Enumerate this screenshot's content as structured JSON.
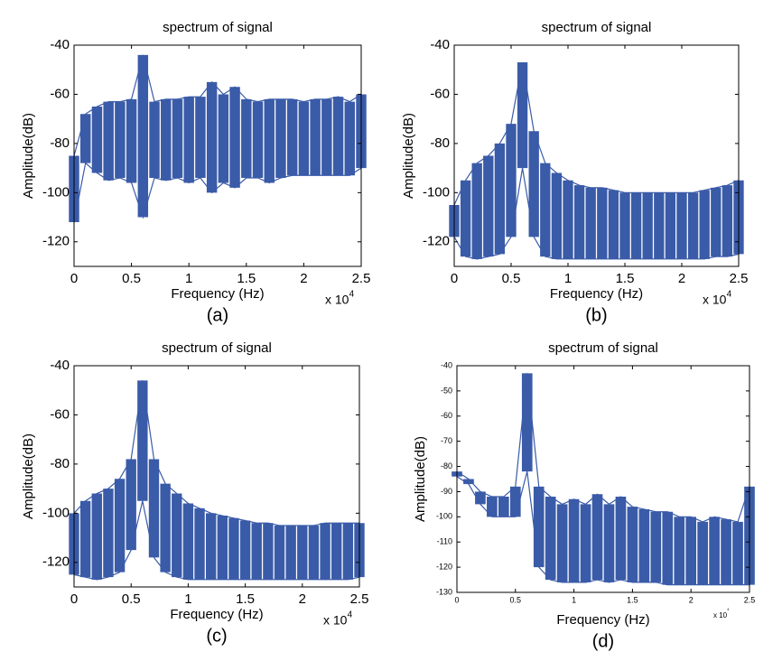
{
  "chart_data": [
    {
      "type": "area",
      "title": "spectrum of signal",
      "xlabel": "Frequency (Hz)",
      "ylabel": "Amplitude(dB)",
      "caption": "(a)",
      "x_scale_label": "x 10",
      "x_scale_exponent": "4",
      "x": [
        0,
        1000,
        2000,
        3000,
        4000,
        5000,
        6000,
        7000,
        8000,
        9000,
        10000,
        11000,
        12000,
        13000,
        14000,
        15000,
        16000,
        17000,
        18000,
        19000,
        20000,
        21000,
        22000,
        23000,
        24000,
        25000
      ],
      "series": [
        {
          "color": "#3a5ba8",
          "values": [
            -85,
            -68,
            -65,
            -63,
            -63,
            -62,
            -44,
            -63,
            -62,
            -62,
            -61,
            -61,
            -55,
            -60,
            -57,
            -62,
            -63,
            -62,
            -62,
            -62,
            -63,
            -62,
            -62,
            -61,
            -63,
            -60
          ]
        },
        {
          "color": "#3a5ba8",
          "values": [
            -112,
            -88,
            -92,
            -95,
            -94,
            -96,
            -110,
            -94,
            -95,
            -94,
            -96,
            -94,
            -100,
            -96,
            -98,
            -94,
            -94,
            -96,
            -94,
            -93,
            -93,
            -93,
            -93,
            -93,
            -93,
            -90
          ]
        }
      ],
      "xlim": [
        0,
        25000
      ],
      "ylim": [
        -130,
        -40
      ],
      "xticks": [
        0,
        {
          "value": 5000,
          "label": "0.5"
        },
        {
          "value": 10000,
          "label": "1"
        },
        {
          "value": 15000,
          "label": "1.5"
        },
        {
          "value": 20000,
          "label": "2"
        },
        {
          "value": 25000,
          "label": "2.5"
        }
      ],
      "yticks": [
        -120,
        -100,
        -80,
        -60,
        -40
      ]
    },
    {
      "type": "area",
      "title": "spectrum of signal",
      "xlabel": "Frequency (Hz)",
      "ylabel": "Amplitude(dB)",
      "caption": "(b)",
      "x_scale_label": "x 10",
      "x_scale_exponent": "4",
      "x": [
        0,
        1000,
        2000,
        3000,
        4000,
        5000,
        6000,
        7000,
        8000,
        9000,
        10000,
        11000,
        12000,
        13000,
        14000,
        15000,
        16000,
        17000,
        18000,
        19000,
        20000,
        21000,
        22000,
        23000,
        24000,
        25000
      ],
      "series": [
        {
          "color": "#3a5ba8",
          "values": [
            -105,
            -95,
            -88,
            -85,
            -80,
            -72,
            -47,
            -75,
            -88,
            -92,
            -95,
            -97,
            -98,
            -98,
            -99,
            -100,
            -100,
            -100,
            -100,
            -100,
            -100,
            -100,
            -99,
            -98,
            -97,
            -95
          ]
        },
        {
          "color": "#3a5ba8",
          "values": [
            -118,
            -126,
            -127,
            -126,
            -125,
            -118,
            -90,
            -118,
            -126,
            -127,
            -127,
            -127,
            -127,
            -127,
            -127,
            -127,
            -127,
            -127,
            -127,
            -127,
            -127,
            -127,
            -127,
            -126,
            -126,
            -125
          ]
        }
      ],
      "xlim": [
        0,
        25000
      ],
      "ylim": [
        -130,
        -40
      ],
      "xticks": [
        0,
        {
          "value": 5000,
          "label": "0.5"
        },
        {
          "value": 10000,
          "label": "1"
        },
        {
          "value": 15000,
          "label": "1.5"
        },
        {
          "value": 20000,
          "label": "2"
        },
        {
          "value": 25000,
          "label": "2.5"
        }
      ],
      "yticks": [
        -120,
        -100,
        -80,
        -60,
        -40
      ]
    },
    {
      "type": "area",
      "title": "spectrum of signal",
      "xlabel": "Frequency (Hz)",
      "ylabel": "Amplitude(dB)",
      "caption": "(c)",
      "x_scale_label": "x 10",
      "x_scale_exponent": "4",
      "x": [
        0,
        1000,
        2000,
        3000,
        4000,
        5000,
        6000,
        7000,
        8000,
        9000,
        10000,
        11000,
        12000,
        13000,
        14000,
        15000,
        16000,
        17000,
        18000,
        19000,
        20000,
        21000,
        22000,
        23000,
        24000,
        25000
      ],
      "series": [
        {
          "color": "#3a5ba8",
          "values": [
            -100,
            -95,
            -92,
            -90,
            -86,
            -78,
            -46,
            -78,
            -88,
            -92,
            -96,
            -98,
            -100,
            -101,
            -102,
            -103,
            -104,
            -104,
            -105,
            -105,
            -105,
            -105,
            -104,
            -104,
            -104,
            -104
          ]
        },
        {
          "color": "#3a5ba8",
          "values": [
            -125,
            -126,
            -127,
            -126,
            -124,
            -115,
            -95,
            -118,
            -124,
            -126,
            -127,
            -127,
            -127,
            -127,
            -127,
            -127,
            -127,
            -127,
            -127,
            -127,
            -127,
            -127,
            -127,
            -127,
            -127,
            -126
          ]
        }
      ],
      "xlim": [
        0,
        25000
      ],
      "ylim": [
        -130,
        -40
      ],
      "xticks": [
        0,
        {
          "value": 5000,
          "label": "0.5"
        },
        {
          "value": 10000,
          "label": "1"
        },
        {
          "value": 15000,
          "label": "1.5"
        },
        {
          "value": 20000,
          "label": "2"
        },
        {
          "value": 25000,
          "label": "2.5"
        }
      ],
      "yticks": [
        -120,
        -100,
        -80,
        -60,
        -40
      ]
    },
    {
      "type": "area",
      "title": "spectrum of signal",
      "xlabel": "Frequency (Hz)",
      "ylabel": "Amplitude(dB)",
      "caption": "(d)",
      "x_scale_label": "x 10",
      "x_scale_exponent": "4",
      "x": [
        0,
        1000,
        2000,
        3000,
        4000,
        5000,
        6000,
        7000,
        8000,
        9000,
        10000,
        11000,
        12000,
        13000,
        14000,
        15000,
        16000,
        17000,
        18000,
        19000,
        20000,
        21000,
        22000,
        23000,
        24000,
        25000
      ],
      "series": [
        {
          "color": "#3a5ba8",
          "values": [
            -82,
            -85,
            -90,
            -92,
            -92,
            -88,
            -43,
            -88,
            -92,
            -95,
            -93,
            -95,
            -91,
            -95,
            -92,
            -96,
            -97,
            -98,
            -98,
            -100,
            -100,
            -102,
            -100,
            -101,
            -102,
            -88
          ]
        },
        {
          "color": "#3a5ba8",
          "values": [
            -84,
            -87,
            -95,
            -100,
            -100,
            -100,
            -82,
            -120,
            -125,
            -126,
            -126,
            -126,
            -125,
            -126,
            -125,
            -126,
            -126,
            -126,
            -127,
            -127,
            -127,
            -127,
            -127,
            -127,
            -127,
            -127
          ]
        }
      ],
      "xlim": [
        0,
        25000
      ],
      "ylim": [
        -130,
        -40
      ],
      "xticks": [
        0,
        {
          "value": 5000,
          "label": "0.5"
        },
        {
          "value": 10000,
          "label": "1"
        },
        {
          "value": 15000,
          "label": "1.5"
        },
        {
          "value": 20000,
          "label": "2"
        },
        {
          "value": 25000,
          "label": "2.5"
        }
      ],
      "yticks": [
        -130,
        -120,
        -110,
        -100,
        -90,
        -80,
        -70,
        -60,
        -50,
        -40
      ]
    }
  ]
}
